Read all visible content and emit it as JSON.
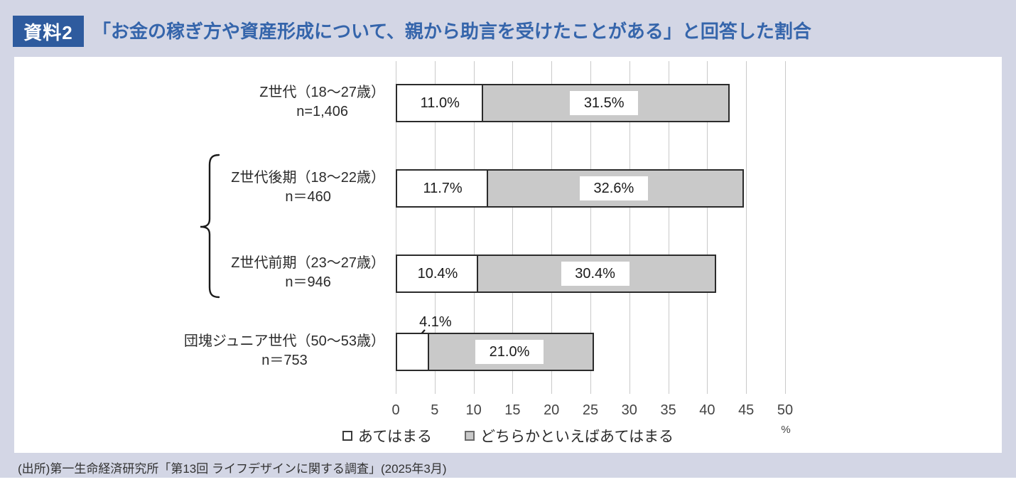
{
  "header": {
    "badge": "資料2",
    "title": "「お金の稼ぎ方や資産形成について、親から助言を受けたことがある」と回答した割合"
  },
  "chart_data": {
    "type": "bar",
    "orientation": "horizontal",
    "stacked": true,
    "title": "「お金の稼ぎ方や資産形成について、親から助言を受けたことがある」と回答した割合",
    "unit": "%",
    "xlim": [
      0,
      50
    ],
    "xticks": [
      0,
      5,
      10,
      15,
      20,
      25,
      30,
      35,
      40,
      45,
      50
    ],
    "grid": true,
    "legend_position": "bottom",
    "categories": [
      "Z世代（18～27歳）",
      "Z世代後期（18～22歳）",
      "Z世代前期（23～27歳）",
      "団塊ジュニア世代（50～53歳）"
    ],
    "category_n": [
      "n=1,406",
      "n＝460",
      "n＝946",
      "n＝753"
    ],
    "series": [
      {
        "name": "あてはまる",
        "color": "#ffffff",
        "values": [
          11.0,
          11.7,
          10.4,
          4.1
        ]
      },
      {
        "name": "どちらかといえばあてはまる",
        "color": "#c9c9c9",
        "values": [
          31.5,
          32.6,
          30.4,
          21.0
        ]
      }
    ],
    "data_labels": [
      [
        "11.0%",
        "31.5%"
      ],
      [
        "11.7%",
        "32.6%"
      ],
      [
        "10.4%",
        "30.4%"
      ],
      [
        "4.1%",
        "21.0%"
      ]
    ],
    "callout_rows": [
      3
    ],
    "bracket_group_rows": [
      1,
      2
    ]
  },
  "axis": {
    "percent_label": "%"
  },
  "colors": {
    "page_bg": "#d3d6e5",
    "badge_bg": "#2e5b9e",
    "title_text": "#3565ab",
    "bar_gray": "#c9c9c9",
    "bar_border": "#2b2b2b",
    "gridline": "#c9c9c9"
  },
  "source": "(出所)第一生命経済研究所「第13回 ライフデザインに関する調査」(2025年3月)"
}
